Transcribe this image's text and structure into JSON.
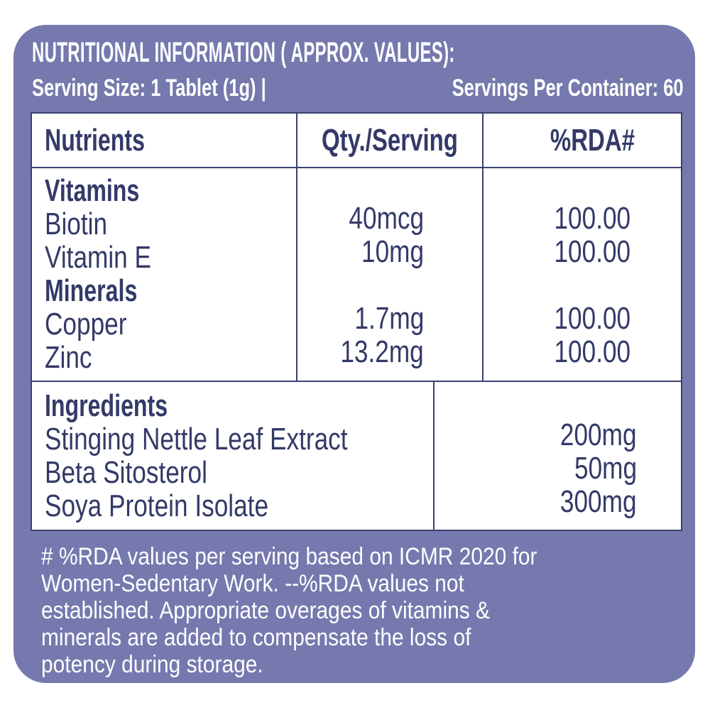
{
  "label": {
    "title": "NUTRITIONAL INFORMATION ( APPROX. VALUES):",
    "serving_size": "Serving Size: 1 Tablet (1g) |",
    "servings_per_container": "Servings Per Container: 60"
  },
  "table": {
    "headers": {
      "nutrients": "Nutrients",
      "qty": "Qty./Serving",
      "rda": "%RDA#"
    },
    "sections": [
      {
        "title": "Vitamins",
        "rows": [
          {
            "name": "Biotin",
            "qty": "40mcg",
            "rda": "100.00"
          },
          {
            "name": "Vitamin E",
            "qty": "10mg",
            "rda": "100.00"
          }
        ]
      },
      {
        "title": "Minerals",
        "rows": [
          {
            "name": "Copper",
            "qty": "1.7mg",
            "rda": "100.00"
          },
          {
            "name": "Zinc",
            "qty": "13.2mg",
            "rda": "100.00"
          }
        ]
      }
    ],
    "ingredients": {
      "title": "Ingredients",
      "rows": [
        {
          "name": "Stinging Nettle Leaf Extract",
          "qty": "200mg"
        },
        {
          "name": "Beta Sitosterol",
          "qty": "50mg"
        },
        {
          "name": "Soya Protein Isolate",
          "qty": "300mg"
        }
      ]
    }
  },
  "footnote": {
    "lines": [
      "# %RDA values per serving based on ICMR 2020 for",
      "Women-Sedentary Work. --%RDA values not",
      "established. Appropriate overages of vitamins &",
      "minerals are added to compensate the loss of",
      "potency during storage."
    ]
  },
  "colors": {
    "card_background": "#7579AE",
    "table_background": "#FFFFFF",
    "text_navy": "#333A68",
    "border_navy": "#3A4170",
    "text_white": "#FFFFFF"
  }
}
